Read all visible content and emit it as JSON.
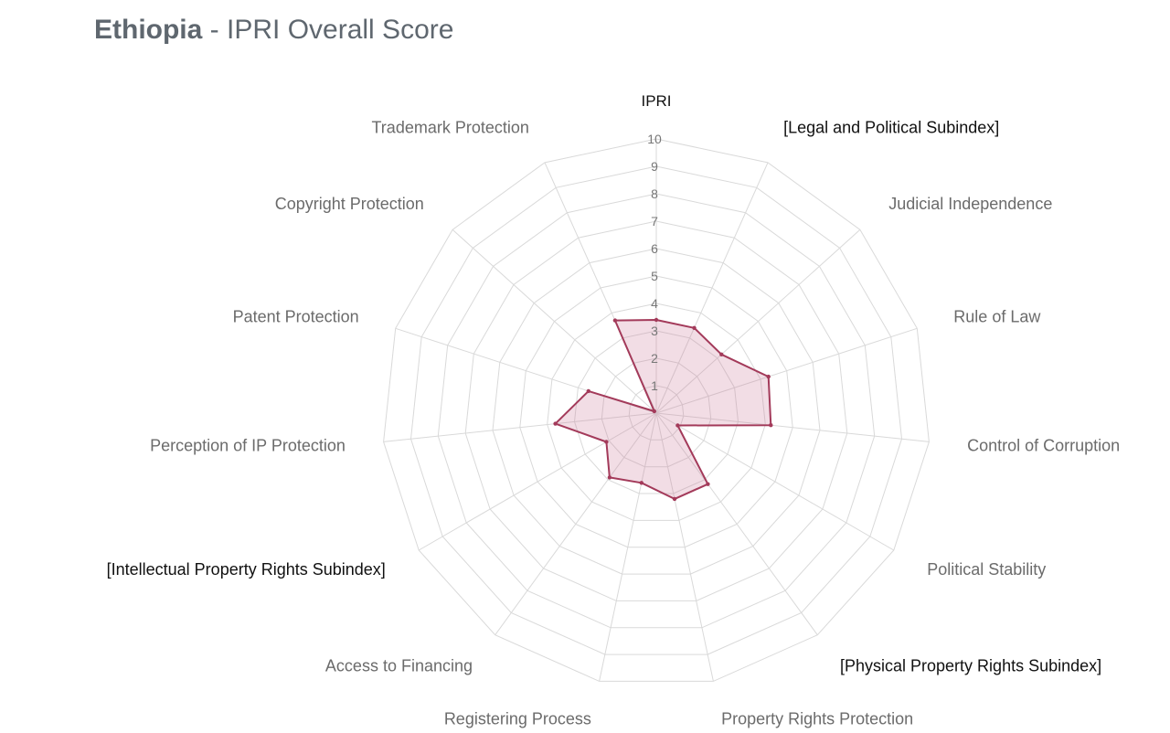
{
  "title": {
    "country": "Ethiopia",
    "separator": " - ",
    "rest": "IPRI Overall Score"
  },
  "chart_data": {
    "type": "radar",
    "rlim": [
      0,
      10
    ],
    "ticks": [
      "1",
      "2",
      "3",
      "4",
      "5",
      "6",
      "7",
      "8",
      "9",
      "10"
    ],
    "grid": true,
    "categories": [
      "IPRI",
      "[Legal and Political Subindex]",
      "Judicial Independence",
      "Rule of Law",
      "Control of Corruption",
      "Political Stability",
      "[Physical Property Rights Subindex]",
      "Property Rights Protection",
      "Registering Process",
      "Access to Financing",
      "[Intellectual Property Rights Subindex]",
      "Perception of IP Protection",
      "Patent Protection",
      "Copyright Protection",
      "Trademark Protection"
    ],
    "subindex_categories": [
      "IPRI",
      "[Legal and Political Subindex]",
      "[Physical Property Rights Subindex]",
      "[Intellectual Property Rights Subindex]"
    ],
    "series": [
      {
        "values": [
          3.4,
          3.4,
          3.2,
          4.3,
          4.2,
          0.9,
          3.2,
          3.2,
          2.6,
          2.9,
          2.1,
          3.7,
          2.6,
          0.1,
          3.7
        ],
        "color": "#a33a5a",
        "fill": "rgba(205,120,150,0.25)"
      }
    ]
  }
}
